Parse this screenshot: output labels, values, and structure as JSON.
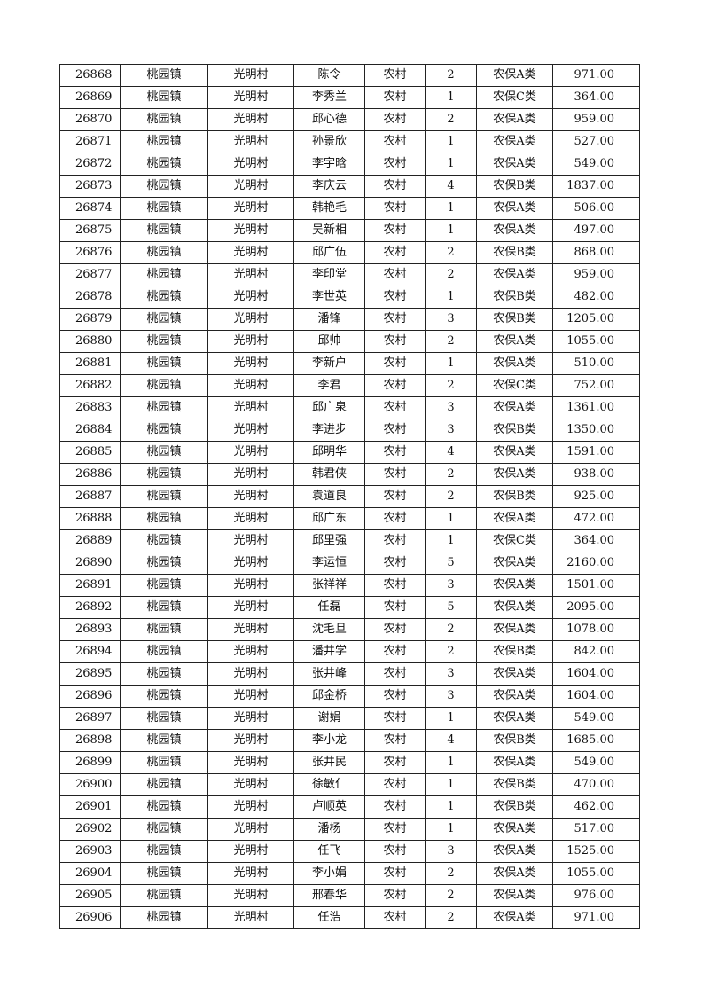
{
  "rows": [
    [
      "26868",
      "桃园镇",
      "光明村",
      "陈令",
      "农村",
      "2",
      "农保A类",
      "971.00"
    ],
    [
      "26869",
      "桃园镇",
      "光明村",
      "李秀兰",
      "农村",
      "1",
      "农保C类",
      "364.00"
    ],
    [
      "26870",
      "桃园镇",
      "光明村",
      "邱心德",
      "农村",
      "2",
      "农保A类",
      "959.00"
    ],
    [
      "26871",
      "桃园镇",
      "光明村",
      "孙景欣",
      "农村",
      "1",
      "农保A类",
      "527.00"
    ],
    [
      "26872",
      "桃园镇",
      "光明村",
      "李宇晗",
      "农村",
      "1",
      "农保A类",
      "549.00"
    ],
    [
      "26873",
      "桃园镇",
      "光明村",
      "李庆云",
      "农村",
      "4",
      "农保B类",
      "1837.00"
    ],
    [
      "26874",
      "桃园镇",
      "光明村",
      "韩艳毛",
      "农村",
      "1",
      "农保A类",
      "506.00"
    ],
    [
      "26875",
      "桃园镇",
      "光明村",
      "吴新相",
      "农村",
      "1",
      "农保A类",
      "497.00"
    ],
    [
      "26876",
      "桃园镇",
      "光明村",
      "邱广伍",
      "农村",
      "2",
      "农保B类",
      "868.00"
    ],
    [
      "26877",
      "桃园镇",
      "光明村",
      "李印堂",
      "农村",
      "2",
      "农保A类",
      "959.00"
    ],
    [
      "26878",
      "桃园镇",
      "光明村",
      "李世英",
      "农村",
      "1",
      "农保B类",
      "482.00"
    ],
    [
      "26879",
      "桃园镇",
      "光明村",
      "潘锋",
      "农村",
      "3",
      "农保B类",
      "1205.00"
    ],
    [
      "26880",
      "桃园镇",
      "光明村",
      "邱帅",
      "农村",
      "2",
      "农保A类",
      "1055.00"
    ],
    [
      "26881",
      "桃园镇",
      "光明村",
      "李新户",
      "农村",
      "1",
      "农保A类",
      "510.00"
    ],
    [
      "26882",
      "桃园镇",
      "光明村",
      "李君",
      "农村",
      "2",
      "农保C类",
      "752.00"
    ],
    [
      "26883",
      "桃园镇",
      "光明村",
      "邱广泉",
      "农村",
      "3",
      "农保A类",
      "1361.00"
    ],
    [
      "26884",
      "桃园镇",
      "光明村",
      "李进步",
      "农村",
      "3",
      "农保B类",
      "1350.00"
    ],
    [
      "26885",
      "桃园镇",
      "光明村",
      "邱明华",
      "农村",
      "4",
      "农保A类",
      "1591.00"
    ],
    [
      "26886",
      "桃园镇",
      "光明村",
      "韩君侠",
      "农村",
      "2",
      "农保A类",
      "938.00"
    ],
    [
      "26887",
      "桃园镇",
      "光明村",
      "袁道良",
      "农村",
      "2",
      "农保B类",
      "925.00"
    ],
    [
      "26888",
      "桃园镇",
      "光明村",
      "邱广东",
      "农村",
      "1",
      "农保A类",
      "472.00"
    ],
    [
      "26889",
      "桃园镇",
      "光明村",
      "邱里强",
      "农村",
      "1",
      "农保C类",
      "364.00"
    ],
    [
      "26890",
      "桃园镇",
      "光明村",
      "李运恒",
      "农村",
      "5",
      "农保A类",
      "2160.00"
    ],
    [
      "26891",
      "桃园镇",
      "光明村",
      "张祥祥",
      "农村",
      "3",
      "农保A类",
      "1501.00"
    ],
    [
      "26892",
      "桃园镇",
      "光明村",
      "任磊",
      "农村",
      "5",
      "农保A类",
      "2095.00"
    ],
    [
      "26893",
      "桃园镇",
      "光明村",
      "沈毛旦",
      "农村",
      "2",
      "农保A类",
      "1078.00"
    ],
    [
      "26894",
      "桃园镇",
      "光明村",
      "潘井学",
      "农村",
      "2",
      "农保B类",
      "842.00"
    ],
    [
      "26895",
      "桃园镇",
      "光明村",
      "张井峰",
      "农村",
      "3",
      "农保A类",
      "1604.00"
    ],
    [
      "26896",
      "桃园镇",
      "光明村",
      "邱金桥",
      "农村",
      "3",
      "农保A类",
      "1604.00"
    ],
    [
      "26897",
      "桃园镇",
      "光明村",
      "谢娟",
      "农村",
      "1",
      "农保A类",
      "549.00"
    ],
    [
      "26898",
      "桃园镇",
      "光明村",
      "李小龙",
      "农村",
      "4",
      "农保B类",
      "1685.00"
    ],
    [
      "26899",
      "桃园镇",
      "光明村",
      "张井民",
      "农村",
      "1",
      "农保A类",
      "549.00"
    ],
    [
      "26900",
      "桃园镇",
      "光明村",
      "徐敏仁",
      "农村",
      "1",
      "农保B类",
      "470.00"
    ],
    [
      "26901",
      "桃园镇",
      "光明村",
      "卢顺英",
      "农村",
      "1",
      "农保B类",
      "462.00"
    ],
    [
      "26902",
      "桃园镇",
      "光明村",
      "潘杨",
      "农村",
      "1",
      "农保A类",
      "517.00"
    ],
    [
      "26903",
      "桃园镇",
      "光明村",
      "任飞",
      "农村",
      "3",
      "农保A类",
      "1525.00"
    ],
    [
      "26904",
      "桃园镇",
      "光明村",
      "李小娟",
      "农村",
      "2",
      "农保A类",
      "1055.00"
    ],
    [
      "26905",
      "桃园镇",
      "光明村",
      "邢春华",
      "农村",
      "2",
      "农保A类",
      "976.00"
    ],
    [
      "26906",
      "桃园镇",
      "光明村",
      "任浩",
      "农村",
      "2",
      "农保A类",
      "971.00"
    ]
  ]
}
